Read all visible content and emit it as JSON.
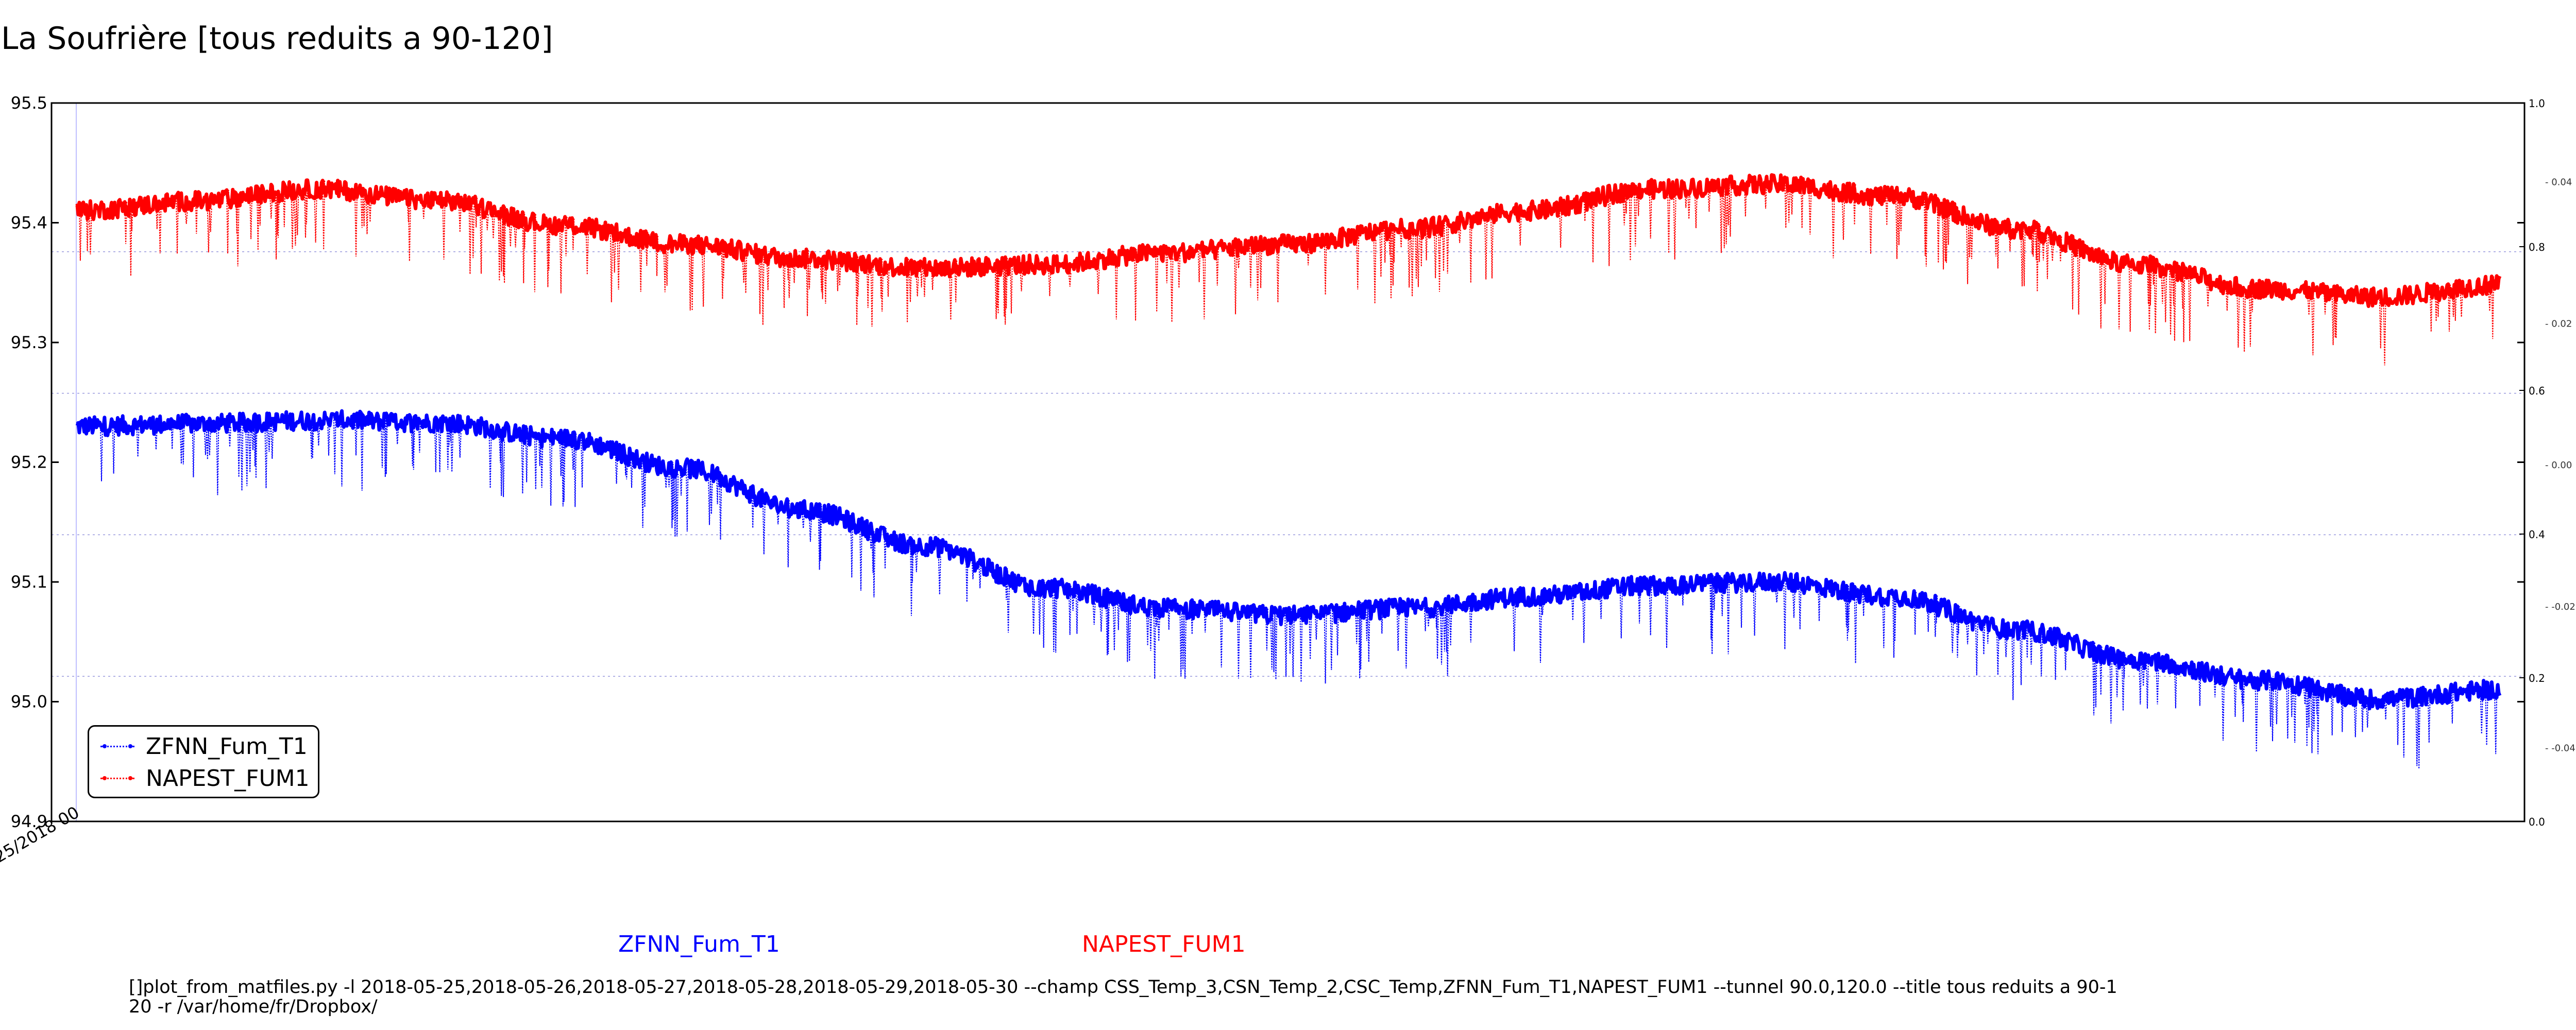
{
  "title": "La Soufrière [tous reduits a 90-120]",
  "chart_data": {
    "type": "line",
    "title": "La Soufrière [tous reduits a 90-120]",
    "xlabel": "",
    "ylabel": "",
    "ylim": [
      94.9,
      95.5
    ],
    "yticks": [
      "94.9",
      "95.0",
      "95.1",
      "95.2",
      "95.3",
      "95.4",
      "95.5"
    ],
    "xticks": [
      "25/2018 00"
    ],
    "grid": true,
    "legend_position": "lower-left",
    "x": [
      0,
      0.05,
      0.1,
      0.15,
      0.2,
      0.25,
      0.3,
      0.35,
      0.4,
      0.45,
      0.5,
      0.55,
      0.6,
      0.65,
      0.7,
      0.75,
      0.8,
      0.85,
      0.9,
      0.95,
      1.0
    ],
    "series": [
      {
        "name": "ZFNN_Fum_T1",
        "color": "#0000ff",
        "values": [
          95.23,
          95.232,
          95.235,
          95.233,
          95.22,
          95.195,
          95.16,
          95.13,
          95.095,
          95.078,
          95.072,
          95.078,
          95.088,
          95.097,
          95.1,
          95.088,
          95.06,
          95.035,
          95.018,
          95.002,
          95.01
        ],
        "dip_depth": 0.06
      },
      {
        "name": "NAPEST_FUM1",
        "color": "#ff0000",
        "values": [
          95.41,
          95.418,
          95.428,
          95.418,
          95.398,
          95.382,
          95.37,
          95.362,
          95.365,
          95.375,
          95.382,
          95.395,
          95.41,
          95.428,
          95.432,
          95.422,
          95.395,
          95.365,
          95.345,
          95.338,
          95.348
        ],
        "dip_depth": 0.06
      }
    ],
    "right_axis_ticks_outer": [
      "0.0",
      "0.2",
      "0.4",
      "0.6",
      "0.8",
      "1.0"
    ],
    "right_axis_ticks_inner": [
      "-0.04",
      "-0.02",
      "0.00",
      "0.02",
      "0.04"
    ]
  },
  "bottom_labels": [
    "ZFNN_Fum_T1",
    "NAPEST_FUM1"
  ],
  "command": "[]plot_from_matfiles.py -l 2018-05-25,2018-05-26,2018-05-27,2018-05-28,2018-05-29,2018-05-30 --champ CSS_Temp_3,CSN_Temp_2,CSC_Temp,ZFNN_Fum_T1,NAPEST_FUM1 --tunnel 90.0,120.0 --title tous reduits a 90-120 -r /var/home/fr/Dropbox/"
}
